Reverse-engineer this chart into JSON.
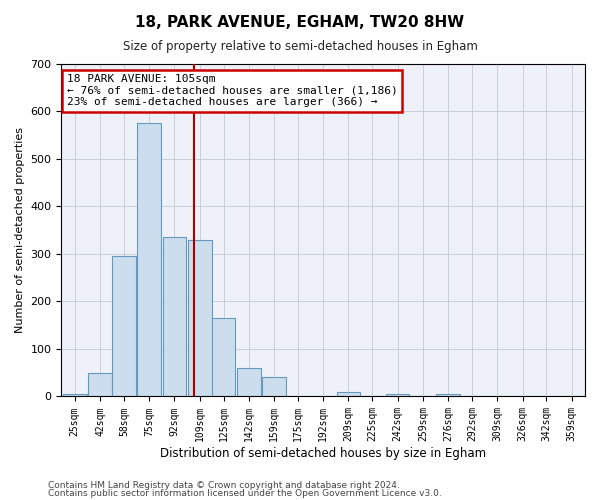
{
  "title": "18, PARK AVENUE, EGHAM, TW20 8HW",
  "subtitle": "Size of property relative to semi-detached houses in Egham",
  "xlabel": "Distribution of semi-detached houses by size in Egham",
  "ylabel": "Number of semi-detached properties",
  "footer_line1": "Contains HM Land Registry data © Crown copyright and database right 2024.",
  "footer_line2": "Contains public sector information licensed under the Open Government Licence v3.0.",
  "annotation_line1": "18 PARK AVENUE: 105sqm",
  "annotation_line2": "← 76% of semi-detached houses are smaller (1,186)",
  "annotation_line3": "23% of semi-detached houses are larger (366) →",
  "property_size": 105,
  "bar_color": "#ccdded",
  "bar_edge_color": "#6699bb",
  "red_line_color": "#aa0000",
  "annotation_box_color": "#ffffff",
  "annotation_box_edge": "#cc0000",
  "background_color": "#eef2f8",
  "plot_bg_color": "#eef2f8",
  "categories": [
    "25sqm",
    "42sqm",
    "58sqm",
    "75sqm",
    "92sqm",
    "109sqm",
    "125sqm",
    "142sqm",
    "159sqm",
    "175sqm",
    "192sqm",
    "209sqm",
    "225sqm",
    "242sqm",
    "259sqm",
    "276sqm",
    "292sqm",
    "309sqm",
    "326sqm",
    "342sqm",
    "359sqm"
  ],
  "bin_centers": [
    25,
    42,
    58,
    75,
    92,
    109,
    125,
    142,
    159,
    175,
    192,
    209,
    225,
    242,
    259,
    276,
    292,
    309,
    326,
    342,
    359
  ],
  "bin_width": 17,
  "values": [
    5,
    50,
    295,
    575,
    335,
    330,
    165,
    60,
    40,
    0,
    0,
    10,
    0,
    5,
    0,
    5,
    0,
    0,
    0,
    0,
    2
  ],
  "ylim": [
    0,
    700
  ],
  "yticks": [
    0,
    100,
    200,
    300,
    400,
    500,
    600,
    700
  ],
  "xlim_left": 16,
  "xlim_right": 368
}
